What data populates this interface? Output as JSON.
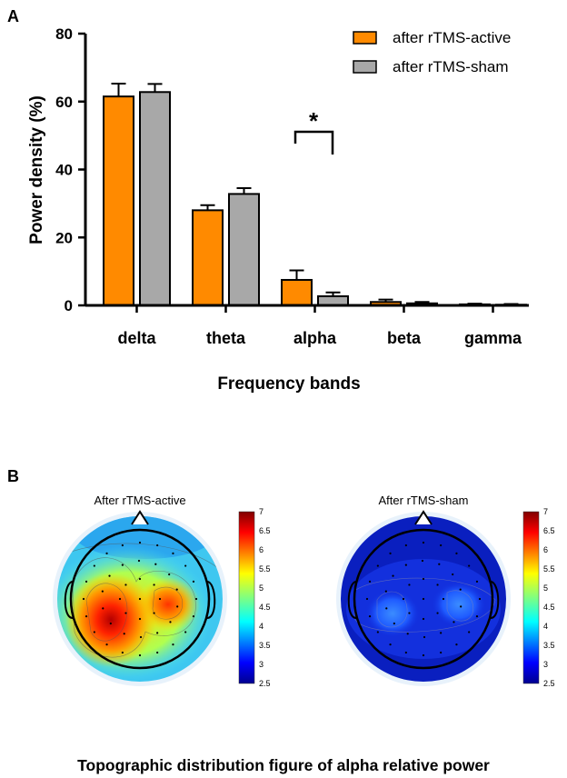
{
  "panel_a_label": "A",
  "panel_b_label": "B",
  "chart_data": [
    {
      "type": "bar",
      "title": "",
      "xlabel": "Frequency bands",
      "ylabel": "Power density (%)",
      "ylim": [
        0,
        80
      ],
      "yticks": [
        "0",
        "20",
        "40",
        "60",
        "80"
      ],
      "categories": [
        "delta",
        "theta",
        "alpha",
        "beta",
        "gamma"
      ],
      "series": [
        {
          "name": "after rTMS-active",
          "color": "#ff8a00",
          "values": [
            61.5,
            28.0,
            7.5,
            1.0,
            0.3
          ],
          "errors": [
            3.8,
            1.5,
            2.8,
            0.7,
            0.2
          ]
        },
        {
          "name": "after rTMS-sham",
          "color": "#a8a8a8",
          "values": [
            62.8,
            32.8,
            2.7,
            0.6,
            0.2
          ],
          "errors": [
            2.4,
            1.7,
            1.1,
            0.4,
            0.2
          ]
        }
      ],
      "significance": {
        "category": "alpha",
        "label": "*"
      },
      "legend_position": "top-right"
    },
    {
      "type": "heatmap",
      "subtype": "topographic",
      "maps": [
        {
          "title": "After rTMS-active"
        },
        {
          "title": "After rTMS-sham"
        }
      ],
      "colorbar_ticks": [
        "7",
        "6.5",
        "6",
        "5.5",
        "5",
        "4.5",
        "4",
        "3.5",
        "3",
        "2.5"
      ],
      "colorbar_range": [
        2.5,
        7
      ],
      "caption": "Topographic distribution figure of alpha relative power"
    }
  ]
}
